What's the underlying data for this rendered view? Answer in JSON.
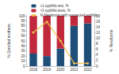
{
  "chart_data": {
    "type": "bar",
    "categories": [
      "2018",
      "2019",
      "2020",
      "2021",
      "2022"
    ],
    "series": [
      {
        "name": "≥1 syphilis test, %",
        "color": "#1f4e79",
        "values": [
          25,
          20,
          35,
          80,
          85
        ]
      },
      {
        "name": "<1 syphilis tests, %",
        "color": "#c0283c",
        "values": [
          75,
          80,
          65,
          20,
          15
        ]
      },
      {
        "name": "% Newborns with suspected syphilis",
        "color": "#f2c14e",
        "type": "line",
        "axis": "y2",
        "marker": "circle",
        "values": [
          12,
          15.8,
          9,
          1,
          1
        ]
      }
    ],
    "ylabel": "% Enrolled mothers",
    "y2label": "% Newborns",
    "ylim": [
      0,
      100
    ],
    "yticks": [
      0,
      10,
      20,
      30,
      40,
      50,
      60,
      70,
      80,
      90,
      100
    ],
    "y2lim": [
      0,
      18
    ],
    "y2ticks": [
      0,
      2,
      4,
      6,
      8,
      10,
      12,
      14,
      16,
      18
    ],
    "stacked": true,
    "legend": "upper right"
  }
}
